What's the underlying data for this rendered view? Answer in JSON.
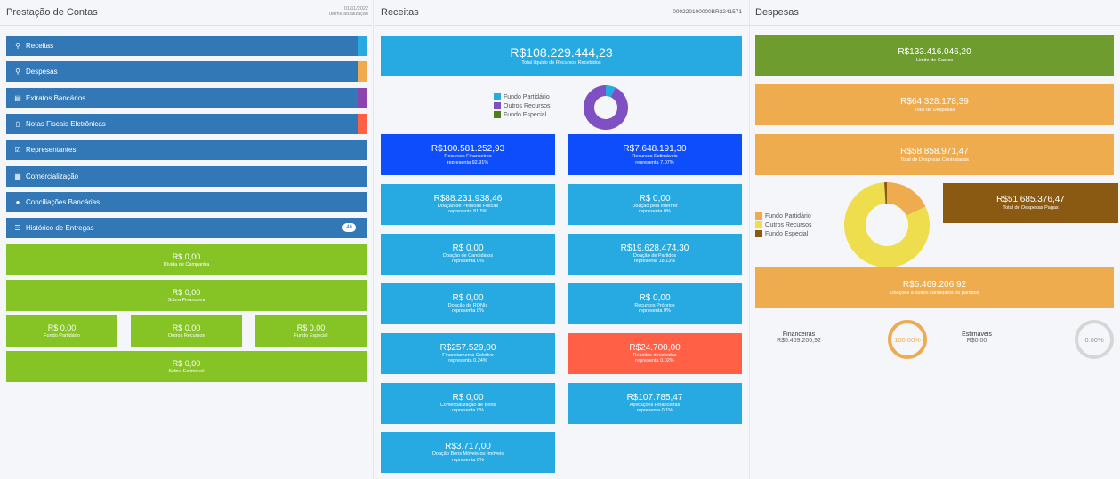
{
  "col1": {
    "title": "Prestação de Contas",
    "date": "01/11/2022",
    "date_caption": "última atualização",
    "menu": [
      {
        "label": "Receitas",
        "icon": "search-icon",
        "glyph": "⚲",
        "strip": "#27aae2"
      },
      {
        "label": "Despesas",
        "icon": "search-icon",
        "glyph": "⚲",
        "strip": "#efac4f"
      },
      {
        "label": "Extratos Bancários",
        "icon": "document-icon",
        "glyph": "▤",
        "strip": "#8e44ad"
      },
      {
        "label": "Notas Fiscais Eletrônicas",
        "icon": "file-icon",
        "glyph": "▯",
        "strip": "#ff6046"
      },
      {
        "label": "Representantes",
        "icon": "checkbox-icon",
        "glyph": "☑",
        "strip": ""
      },
      {
        "label": "Comercialização",
        "icon": "calendar-check-icon",
        "glyph": "▦",
        "strip": ""
      },
      {
        "label": "Conciliações Bancárias",
        "icon": "comments-icon",
        "glyph": "●",
        "strip": ""
      },
      {
        "label": "Histórico de Entregas",
        "icon": "list-icon",
        "glyph": "☰",
        "strip": "",
        "badge": "46"
      }
    ],
    "boxes": {
      "divida": {
        "value": "R$ 0,00",
        "label": "Dívida de Campanha"
      },
      "sobra_fin": {
        "value": "R$ 0,00",
        "label": "Sobra Financeira"
      },
      "fundo_partidario": {
        "value": "R$ 0,00",
        "label": "Fundo Partidário"
      },
      "outros_recursos": {
        "value": "R$ 0,00",
        "label": "Outros Recursos"
      },
      "fundo_especial": {
        "value": "R$ 0,00",
        "label": "Fundo Especial"
      },
      "sobra_est": {
        "value": "R$ 0,00",
        "label": "Sobra Estimável"
      }
    }
  },
  "col2": {
    "title": "Receitas",
    "code": "000220100000BR2241571",
    "total": {
      "value": "R$108.229.444,23",
      "label": "Total líquido de Recursos Recebidos"
    },
    "legend": [
      {
        "label": "Fundo Partidário",
        "color": "#27aae2"
      },
      {
        "label": "Outros Recursos",
        "color": "#7f4fc4"
      },
      {
        "label": "Fundo Especial",
        "color": "#4f7f1a"
      }
    ],
    "donut": {
      "fundo_partidario": 7.07,
      "outros_recursos": 92.93,
      "fundo_especial": 0
    },
    "left": [
      {
        "value": "R$100.581.252,93",
        "label": "Recursos Financeiros",
        "pct": "representa 92.91%",
        "color": "blue"
      },
      {
        "value": "R$88.231.938,46",
        "label": "Doação de Pessoas Físicas",
        "pct": "representa 81.5%",
        "color": "cyan"
      },
      {
        "value": "R$ 0,00",
        "label": "Doação de Candidatos",
        "pct": "representa 0%",
        "color": "cyan"
      },
      {
        "value": "R$ 0,00",
        "label": "Doação de RONIs",
        "pct": "representa 0%",
        "color": "cyan"
      },
      {
        "value": "R$257.529,00",
        "label": "Financiamento Coletivo",
        "pct": "representa 0.24%",
        "color": "cyan"
      },
      {
        "value": "R$ 0,00",
        "label": "Comercialização de Bens",
        "pct": "representa 0%",
        "color": "cyan"
      },
      {
        "value": "R$3.717,00",
        "label": "Doação Bens Móveis ou Imóveis",
        "pct": "representa 0%",
        "color": "cyan"
      }
    ],
    "right": [
      {
        "value": "R$7.648.191,30",
        "label": "Recursos Estimáveis",
        "pct": "representa 7.07%",
        "color": "blue"
      },
      {
        "value": "R$ 0,00",
        "label": "Doação pela Internet",
        "pct": "representa 0%",
        "color": "cyan"
      },
      {
        "value": "R$19.628.474,30",
        "label": "Doação de Partidos",
        "pct": "representa 18.13%",
        "color": "cyan"
      },
      {
        "value": "R$ 0,00",
        "label": "Recursos Próprios",
        "pct": "representa 0%",
        "color": "cyan"
      },
      {
        "value": "R$24.700,00",
        "label": "Receitas devolvidas",
        "pct": "representa 0.02%",
        "color": "red"
      },
      {
        "value": "R$107.785,47",
        "label": "Aplicações Financeiras",
        "pct": "representa 0.1%",
        "color": "cyan"
      }
    ]
  },
  "col3": {
    "title": "Despesas",
    "limite": {
      "value": "R$133.416.046,20",
      "label": "Limite de Gastos"
    },
    "total_despesas": {
      "value": "R$64.328.178,39",
      "label": "Total de Despesas"
    },
    "contratadas": {
      "value": "R$58.858.971,47",
      "label": "Total de Despesas Contratadas"
    },
    "pagas": {
      "value": "R$51.685.376,47",
      "label": "Total de Despesas Pagas"
    },
    "doacoes": {
      "value": "R$5.469.206,92",
      "label": "Doações a outros candidatos ou partidos"
    },
    "legend": [
      {
        "label": "Fundo Partidário",
        "color": "#efac4f"
      },
      {
        "label": "Outros Recursos",
        "color": "#eedd4c"
      },
      {
        "label": "Fundo Especial",
        "color": "#8b5a12"
      }
    ],
    "donut": {
      "fundo_partidario": 18,
      "outros_recursos": 81,
      "fundo_especial": 1
    },
    "financeiras": {
      "label": "Financeiras",
      "value": "R$5.469.206,92",
      "pct_text": "100.00%",
      "pct": 100
    },
    "estimaveis": {
      "label": "Estimáveis",
      "value": "R$0,00",
      "pct_text": "0.00%",
      "pct": 0
    }
  }
}
